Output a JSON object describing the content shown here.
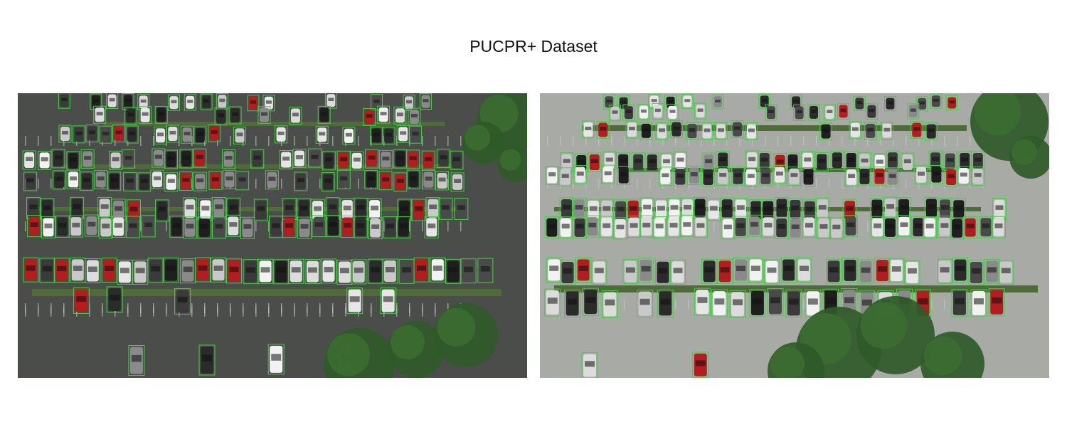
{
  "figure": {
    "title": "PUCPR+ Dataset"
  },
  "images": [
    {
      "name": "parking-lot-photo-left",
      "scene": "overcast"
    },
    {
      "name": "parking-lot-photo-right",
      "scene": "daylight"
    }
  ],
  "colors": {
    "bounding_box": "#3fd13f",
    "pavement_dark": "#4a4d4a",
    "pavement_light": "#a8aaa6",
    "grass": "#4f6b3a",
    "tree": "#2f5a28"
  }
}
